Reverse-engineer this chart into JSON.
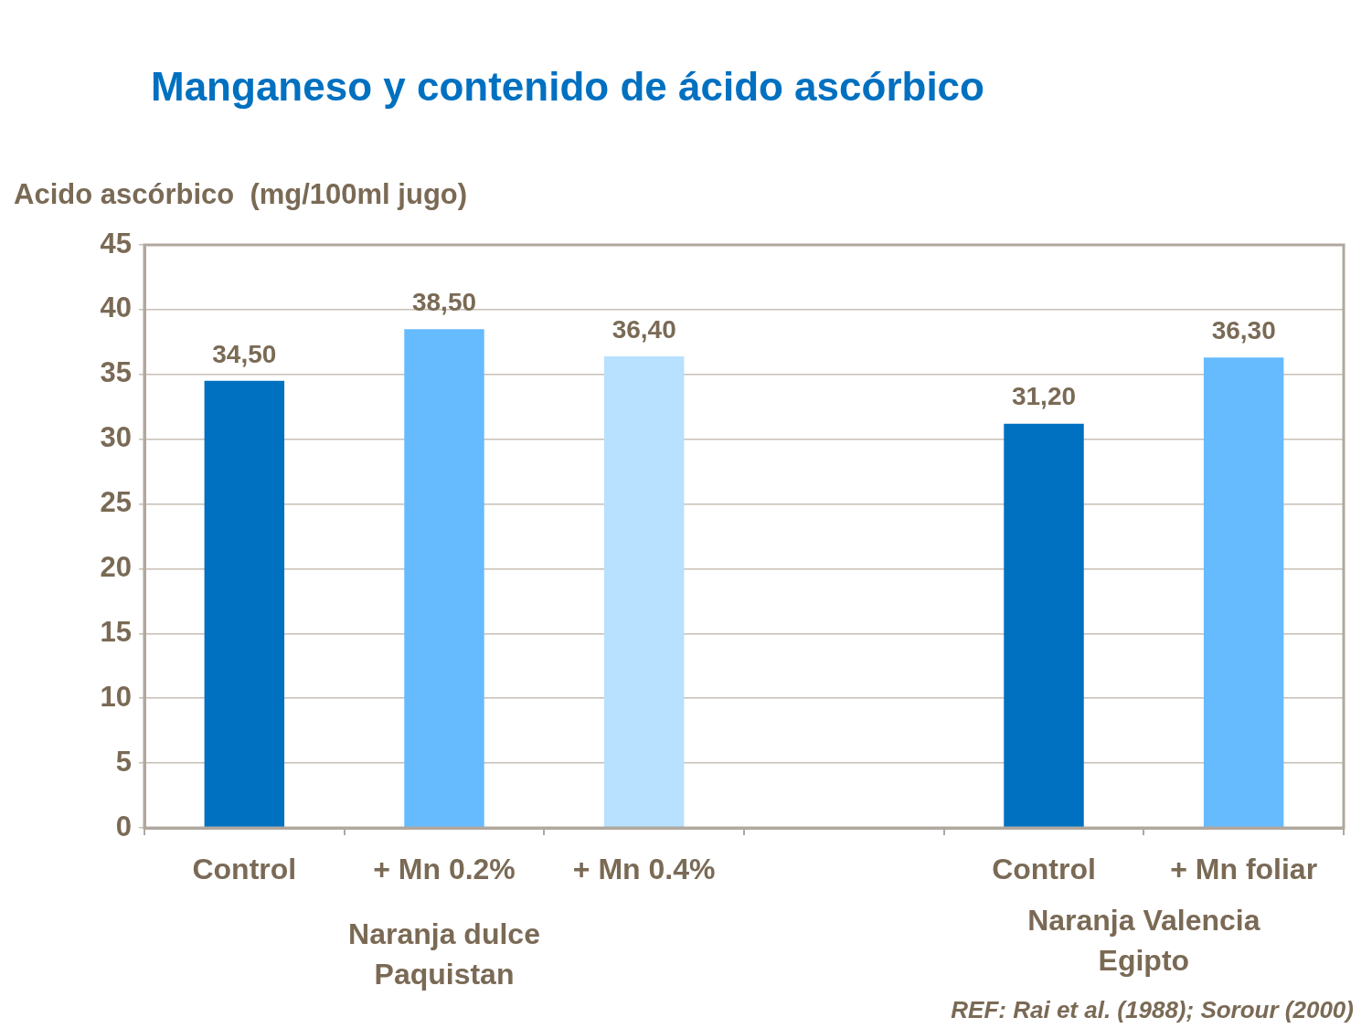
{
  "chart_data": {
    "type": "bar",
    "title": "Manganeso y contenido de ácido ascórbico",
    "ylabel": "Acido ascórbico  (mg/100ml jugo)",
    "categories": [
      "Control",
      "+ Mn 0.2%",
      "+ Mn 0.4%",
      null,
      "Control",
      "+ Mn foliar"
    ],
    "values": [
      34.5,
      38.5,
      36.4,
      null,
      31.2,
      36.3
    ],
    "colors": [
      "#0070c0",
      "#66bbff",
      "#b8e0ff",
      "#66bbff",
      "#0070c0",
      "#66bbff"
    ],
    "value_labels": [
      "34,50",
      "38,50",
      "36,40",
      null,
      "31,20",
      "36,30"
    ],
    "ylim": [
      0,
      45
    ],
    "yticks": [
      0,
      5,
      10,
      15,
      20,
      25,
      30,
      35,
      40,
      45
    ],
    "grid": "y",
    "legend": false,
    "annotations": [
      "Naranja dulce\nPaquistan",
      "Naranja Valencia\nEgipto",
      "REF: Rai et al. (1988); Sorour (2000)"
    ]
  }
}
